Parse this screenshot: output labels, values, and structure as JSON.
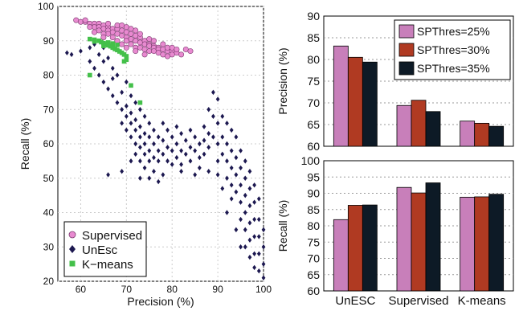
{
  "chart_data": [
    {
      "type": "scatter",
      "xlabel": "Precision (%)",
      "ylabel": "Recall (%)",
      "xlim": [
        55,
        100
      ],
      "ylim": [
        20,
        100
      ],
      "xticks": [
        60,
        70,
        80,
        90,
        100
      ],
      "yticks": [
        20,
        30,
        40,
        50,
        60,
        70,
        80,
        90,
        100
      ],
      "legend_position": "bottom-left",
      "series": [
        {
          "name": "Supervised",
          "color": "#e88ad0",
          "marker": "circle",
          "points": [
            [
              59,
              96
            ],
            [
              60,
              95.5
            ],
            [
              61,
              95.5
            ],
            [
              62,
              95
            ],
            [
              63,
              95
            ],
            [
              63,
              94
            ],
            [
              64,
              95
            ],
            [
              64,
              94
            ],
            [
              65,
              94.5
            ],
            [
              65,
              93.5
            ],
            [
              66,
              94
            ],
            [
              66,
              93
            ],
            [
              67,
              93.5
            ],
            [
              67,
              92.5
            ],
            [
              68,
              93.5
            ],
            [
              68,
              92
            ],
            [
              69,
              93
            ],
            [
              69,
              91.5
            ],
            [
              70,
              92.5
            ],
            [
              70,
              91
            ],
            [
              71,
              92
            ],
            [
              71,
              90.5
            ],
            [
              72,
              91.5
            ],
            [
              72,
              90
            ],
            [
              73,
              91
            ],
            [
              73,
              89.5
            ],
            [
              74,
              90
            ],
            [
              74,
              89
            ],
            [
              75,
              89
            ],
            [
              75,
              88.5
            ],
            [
              76,
              88.5
            ],
            [
              76,
              88
            ],
            [
              77,
              88
            ],
            [
              77,
              87.5
            ],
            [
              78,
              87.5
            ],
            [
              79,
              87
            ],
            [
              80,
              87
            ],
            [
              81,
              86.5
            ],
            [
              82,
              86
            ],
            [
              61,
              96
            ],
            [
              62,
              94
            ],
            [
              64,
              93
            ],
            [
              66,
              92
            ],
            [
              67,
              91
            ],
            [
              68,
              90
            ],
            [
              70,
              90
            ],
            [
              71,
              89
            ],
            [
              72,
              88
            ],
            [
              73,
              88
            ],
            [
              74,
              87.5
            ],
            [
              75,
              87
            ],
            [
              76,
              87
            ],
            [
              77,
              86.5
            ],
            [
              78,
              86
            ],
            [
              63,
              92.5
            ],
            [
              65,
              92
            ],
            [
              69,
              89
            ],
            [
              70,
              88
            ],
            [
              72,
              87
            ],
            [
              74,
              86
            ],
            [
              79,
              85.5
            ],
            [
              80,
              86
            ],
            [
              66,
              95
            ],
            [
              68,
              94.5
            ],
            [
              70,
              94
            ],
            [
              72,
              93
            ],
            [
              65,
              91
            ],
            [
              69,
              94.5
            ],
            [
              71,
              93.5
            ],
            [
              73,
              92
            ],
            [
              75,
              90.5
            ],
            [
              76,
              90
            ],
            [
              78,
              89
            ],
            [
              79,
              88
            ],
            [
              80,
              88
            ],
            [
              81,
              87.5
            ],
            [
              83,
              87.5
            ],
            [
              84,
              87
            ]
          ]
        },
        {
          "name": "UnEsc",
          "color": "#1c1850",
          "marker": "diamond",
          "points": [
            [
              57,
              86.5
            ],
            [
              58,
              86
            ],
            [
              60,
              87
            ],
            [
              62,
              88
            ],
            [
              62,
              84
            ],
            [
              63,
              89
            ],
            [
              63,
              82
            ],
            [
              64,
              86
            ],
            [
              64,
              80
            ],
            [
              65,
              88
            ],
            [
              65,
              84
            ],
            [
              65,
              78
            ],
            [
              66,
              85
            ],
            [
              66,
              76
            ],
            [
              67,
              82
            ],
            [
              67,
              74
            ],
            [
              67,
              79
            ],
            [
              68,
              72
            ],
            [
              68,
              80
            ],
            [
              69,
              75
            ],
            [
              69,
              70
            ],
            [
              69,
              66
            ],
            [
              70,
              78
            ],
            [
              70,
              71
            ],
            [
              70,
              68
            ],
            [
              70,
              64
            ],
            [
              71,
              74
            ],
            [
              71,
              69
            ],
            [
              71,
              66
            ],
            [
              71,
              62
            ],
            [
              72,
              72
            ],
            [
              72,
              67
            ],
            [
              72,
              64
            ],
            [
              72,
              60
            ],
            [
              72,
              57
            ],
            [
              73,
              70
            ],
            [
              73,
              65
            ],
            [
              73,
              62
            ],
            [
              73,
              59
            ],
            [
              73,
              55
            ],
            [
              74,
              68
            ],
            [
              74,
              63
            ],
            [
              74,
              60
            ],
            [
              74,
              57
            ],
            [
              74,
              53
            ],
            [
              75,
              66
            ],
            [
              75,
              62
            ],
            [
              75,
              58
            ],
            [
              75,
              55
            ],
            [
              76,
              64
            ],
            [
              76,
              60
            ],
            [
              76,
              56
            ],
            [
              76,
              52
            ],
            [
              77,
              62
            ],
            [
              77,
              58
            ],
            [
              77,
              55
            ],
            [
              78,
              66
            ],
            [
              78,
              61
            ],
            [
              78,
              57
            ],
            [
              79,
              64
            ],
            [
              79,
              59
            ],
            [
              79,
              55
            ],
            [
              80,
              62
            ],
            [
              80,
              58
            ],
            [
              80,
              54
            ],
            [
              81,
              65
            ],
            [
              81,
              60
            ],
            [
              81,
              56
            ],
            [
              82,
              63
            ],
            [
              82,
              58
            ],
            [
              82,
              54
            ],
            [
              83,
              61
            ],
            [
              83,
              57
            ],
            [
              84,
              64
            ],
            [
              84,
              59
            ],
            [
              84,
              55
            ],
            [
              85,
              62
            ],
            [
              85,
              58
            ],
            [
              86,
              60
            ],
            [
              86,
              56
            ],
            [
              86,
              53
            ],
            [
              87,
              65
            ],
            [
              87,
              61
            ],
            [
              87,
              57
            ],
            [
              88,
              70
            ],
            [
              88,
              63
            ],
            [
              88,
              59
            ],
            [
              89,
              75
            ],
            [
              89,
              68
            ],
            [
              89,
              62
            ],
            [
              90,
              73
            ],
            [
              90,
              66
            ],
            [
              90,
              60
            ],
            [
              90,
              55
            ],
            [
              91,
              68
            ],
            [
              91,
              62
            ],
            [
              91,
              57
            ],
            [
              92,
              66
            ],
            [
              92,
              60
            ],
            [
              92,
              55
            ],
            [
              92,
              50
            ],
            [
              93,
              64
            ],
            [
              93,
              58
            ],
            [
              93,
              53
            ],
            [
              93,
              48
            ],
            [
              94,
              62
            ],
            [
              94,
              56
            ],
            [
              94,
              51
            ],
            [
              94,
              46
            ],
            [
              95,
              58
            ],
            [
              95,
              53
            ],
            [
              95,
              48
            ],
            [
              95,
              43
            ],
            [
              95,
              38
            ],
            [
              96,
              55
            ],
            [
              96,
              50
            ],
            [
              96,
              45
            ],
            [
              96,
              40
            ],
            [
              96,
              35
            ],
            [
              96,
              30
            ],
            [
              97,
              52
            ],
            [
              97,
              47
            ],
            [
              97,
              42
            ],
            [
              97,
              37
            ],
            [
              97,
              32
            ],
            [
              97,
              27
            ],
            [
              98,
              48
            ],
            [
              98,
              43
            ],
            [
              98,
              38
            ],
            [
              98,
              33
            ],
            [
              98,
              28
            ],
            [
              98,
              24
            ],
            [
              99,
              44
            ],
            [
              99,
              38
            ],
            [
              99,
              33
            ],
            [
              99,
              28
            ],
            [
              99,
              23
            ],
            [
              100,
              35
            ],
            [
              100,
              30
            ],
            [
              100,
              25
            ],
            [
              100,
              21
            ],
            [
              66,
              51
            ],
            [
              69,
              52
            ],
            [
              71,
              55
            ],
            [
              73,
              50
            ],
            [
              75,
              50
            ],
            [
              77,
              49
            ],
            [
              78,
              51
            ],
            [
              82,
              52
            ],
            [
              85,
              51
            ],
            [
              88,
              52
            ],
            [
              90,
              51
            ],
            [
              92,
              40
            ],
            [
              94,
              35
            ],
            [
              93,
              44
            ],
            [
              95,
              30
            ],
            [
              91,
              47
            ]
          ]
        },
        {
          "name": "K−means",
          "color": "#44c04a",
          "marker": "square",
          "points": [
            [
              62,
              90.5
            ],
            [
              63,
              90.3
            ],
            [
              64,
              90
            ],
            [
              64.5,
              89.6
            ],
            [
              65,
              89.3
            ],
            [
              65.5,
              89
            ],
            [
              66,
              88.7
            ],
            [
              66.5,
              88.4
            ],
            [
              67,
              88
            ],
            [
              67.5,
              87.6
            ],
            [
              68,
              87.3
            ],
            [
              68.5,
              86.9
            ],
            [
              69,
              86.5
            ],
            [
              69.5,
              86
            ],
            [
              70,
              85.5
            ],
            [
              70,
              84.5
            ],
            [
              69.5,
              84
            ],
            [
              66,
              89.5
            ],
            [
              67,
              89.2
            ],
            [
              68,
              88.8
            ],
            [
              63,
              89.8
            ],
            [
              65,
              88.5
            ],
            [
              62,
              80
            ],
            [
              71,
              77
            ],
            [
              73,
              72
            ]
          ]
        }
      ]
    },
    {
      "type": "bar",
      "ylabel": "Precision (%)",
      "ylim": [
        60,
        90
      ],
      "yticks": [
        60,
        65,
        70,
        75,
        80,
        85,
        90
      ],
      "categories": [
        "UnESC",
        "Supervised",
        "K-means"
      ],
      "legend_position": "top-right",
      "series": [
        {
          "name": "SPThres=25%",
          "color": "#c87fba",
          "values": [
            83.1,
            69.4,
            65.8
          ]
        },
        {
          "name": "SPThres=30%",
          "color": "#b03a22",
          "values": [
            80.5,
            70.6,
            65.3
          ]
        },
        {
          "name": "SPThres=35%",
          "color": "#0d1a26",
          "values": [
            79.4,
            68.0,
            64.6
          ]
        }
      ]
    },
    {
      "type": "bar",
      "ylabel": "Recall (%)",
      "ylim": [
        60,
        100
      ],
      "yticks": [
        60,
        65,
        70,
        75,
        80,
        85,
        90,
        95,
        100
      ],
      "categories": [
        "UnESC",
        "Supervised",
        "K-means"
      ],
      "series": [
        {
          "name": "SPThres=25%",
          "color": "#c87fba",
          "values": [
            81.9,
            91.8,
            88.8
          ]
        },
        {
          "name": "SPThres=30%",
          "color": "#b03a22",
          "values": [
            86.3,
            90.1,
            88.9
          ]
        },
        {
          "name": "SPThres=35%",
          "color": "#0d1a26",
          "values": [
            86.4,
            93.2,
            89.7
          ]
        }
      ]
    }
  ]
}
